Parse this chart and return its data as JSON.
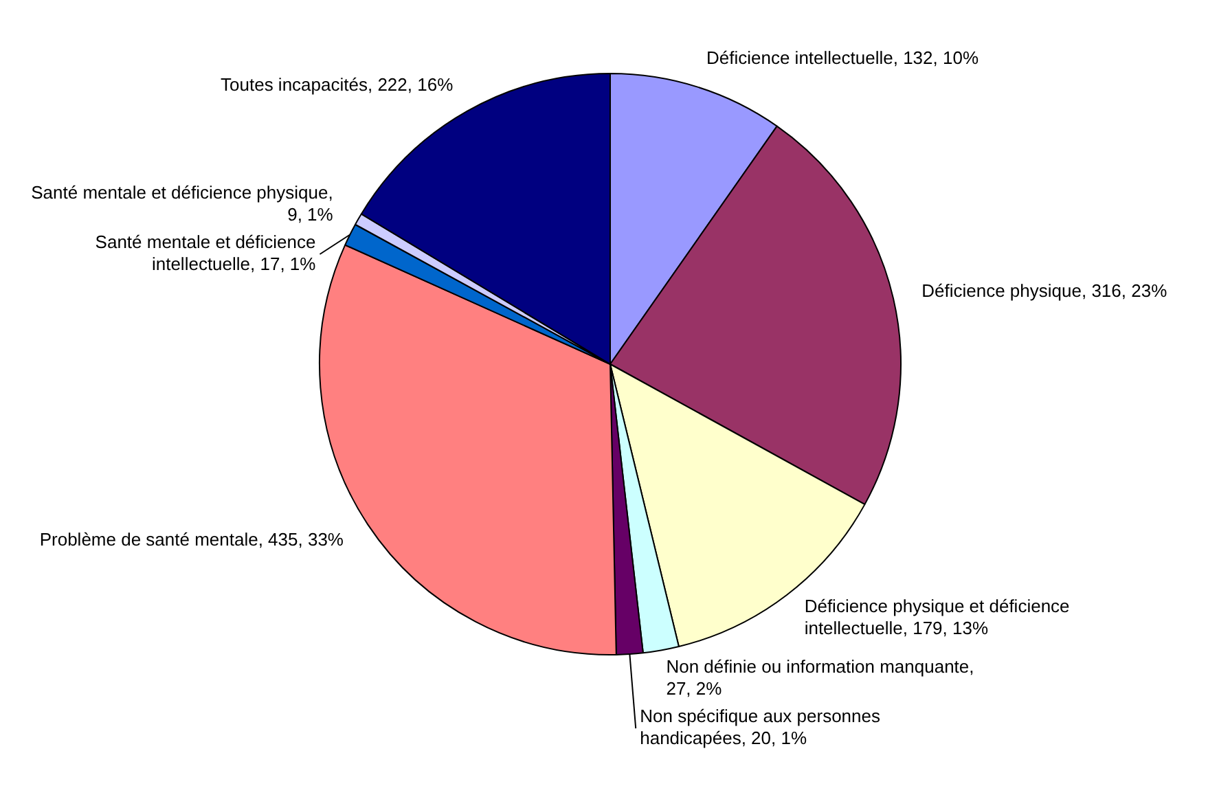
{
  "chart_data": {
    "type": "pie",
    "categories": [
      "Déficience intellectuelle",
      "Déficience physique",
      "Déficience physique et déficience intellectuelle",
      "Non définie ou information manquante",
      "Non spécifique aux personnes handicapées",
      "Problème de santé mentale",
      "Santé mentale et déficience intellectuelle",
      "Santé mentale et déficience physique",
      "Toutes incapacités"
    ],
    "values": [
      132,
      316,
      179,
      27,
      20,
      435,
      17,
      9,
      222
    ],
    "colors": [
      "#9999ff",
      "#993366",
      "#ffffcc",
      "#ccffff",
      "#660066",
      "#ff8080",
      "#0066cc",
      "#ccccff",
      "#000080"
    ],
    "value_labels": [
      ", 132, 10%",
      ", 316, 23%",
      ", 179, 13%",
      ", 27, 2%",
      ", 20, 1%",
      ", 435, 33%",
      ", 17, 1%",
      ", 9, 1%",
      ", 222, 16%"
    ],
    "legend": false
  }
}
